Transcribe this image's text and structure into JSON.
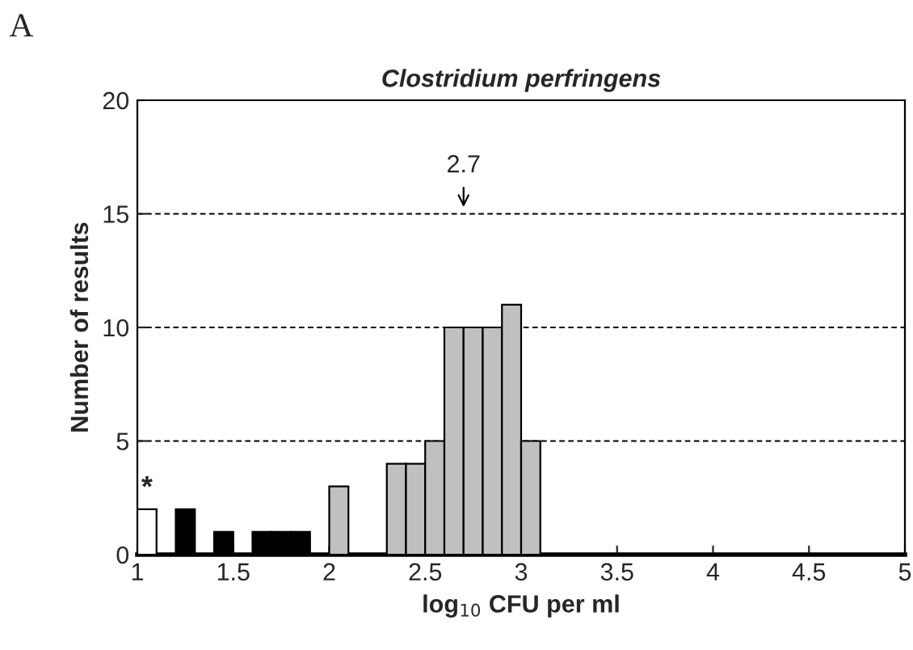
{
  "chart_data": {
    "type": "histogram",
    "title": "Clostridium perfringens",
    "xlabel": "log$_{10}$ CFU per ml",
    "ylabel": "Number of results",
    "bins": [
      1.0,
      1.1,
      1.2,
      1.3,
      1.4,
      1.5,
      1.6,
      1.7,
      1.8,
      1.9,
      2.0,
      2.1,
      2.2,
      2.3,
      2.4,
      2.5,
      2.6,
      2.7,
      2.8,
      2.9,
      3.0,
      3.1,
      3.2,
      3.3,
      3.4,
      3.5,
      3.6,
      3.7,
      3.8,
      3.9,
      4.0,
      4.1,
      4.2,
      4.3,
      4.4,
      4.5,
      4.6,
      4.7,
      4.8,
      4.9,
      5.0
    ],
    "values": [
      2,
      0,
      2,
      0,
      1,
      0,
      1,
      1,
      1,
      0,
      3,
      0,
      0,
      4,
      4,
      5,
      10,
      10,
      10,
      11,
      5,
      0,
      0,
      0,
      0,
      0,
      0,
      0,
      0,
      0,
      0,
      0,
      0,
      0,
      0,
      0,
      0,
      0,
      0,
      0
    ],
    "colors": [
      "#ffffff",
      "#000000",
      "#000000",
      "#000000",
      "#000000",
      "#000000",
      "#000000",
      "#000000",
      "#000000",
      "#000000",
      "#c0c0c0",
      "#c0c0c0",
      "#c0c0c0",
      "#c0c0c0",
      "#c0c0c0",
      "#c0c0c0",
      "#c0c0c0",
      "#c0c0c0",
      "#c0c0c0",
      "#c0c0c0",
      "#c0c0c0",
      "#c0c0c0",
      "#c0c0c0",
      "#c0c0c0",
      "#c0c0c0",
      "#c0c0c0",
      "#c0c0c0",
      "#c0c0c0",
      "#c0c0c0",
      "#c0c0c0",
      "#c0c0c0",
      "#c0c0c0",
      "#c0c0c0",
      "#c0c0c0",
      "#c0c0c0",
      "#c0c0c0",
      "#c0c0c0",
      "#c0c0c0",
      "#c0c0c0",
      "#c0c0c0"
    ],
    "xlim": [
      1,
      5
    ],
    "xticks": [
      1,
      1.5,
      2,
      2.5,
      3,
      3.5,
      4,
      4.5,
      5
    ],
    "ylim": [
      0,
      20
    ],
    "yticks": [
      0,
      5,
      10,
      15,
      20
    ],
    "grid": "y",
    "annotations": [
      "A",
      "2.7",
      {
        "text": "*",
        "x": 1.05,
        "y": 2
      }
    ]
  }
}
